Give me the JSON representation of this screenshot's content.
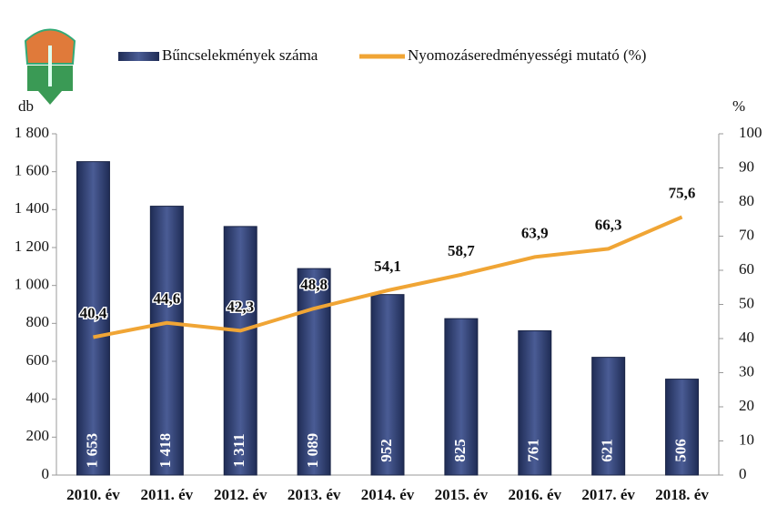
{
  "chart_data": {
    "type": "bar",
    "y_label": "db",
    "y2_label": "%",
    "categories": [
      "2010. év",
      "2011. év",
      "2012. év",
      "2013. év",
      "2014. év",
      "2015. év",
      "2016. év",
      "2017. év",
      "2018. év"
    ],
    "series": [
      {
        "name": "Bűncselekmények száma",
        "color": "#2f3f72",
        "values": [
          1653,
          1418,
          1311,
          1089,
          952,
          825,
          761,
          621,
          506
        ],
        "value_labels": [
          "1 653",
          "1 418",
          "1 311",
          "1 089",
          "952",
          "825",
          "761",
          "621",
          "506"
        ]
      },
      {
        "name": "Nyomozáseredményességi mutató (%)",
        "type": "line",
        "axis": "y2",
        "color": "#f0a535",
        "values": [
          40.4,
          44.6,
          42.3,
          48.8,
          54.1,
          58.7,
          63.9,
          66.3,
          75.6
        ],
        "value_labels": [
          "40,4",
          "44,6",
          "42,3",
          "48,8",
          "54,1",
          "58,7",
          "63,9",
          "66,3",
          "75,6"
        ]
      }
    ],
    "ylim": [
      0,
      1800
    ],
    "yticks": [
      0,
      200,
      400,
      600,
      800,
      {
        "value": 1000,
        "label": "1 000"
      },
      {
        "value": 1200,
        "label": "1 200"
      },
      {
        "value": 1400,
        "label": "1 400"
      },
      {
        "value": 1600,
        "label": "1 600"
      },
      {
        "value": 1800,
        "label": "1 800"
      }
    ],
    "y2lim": [
      0,
      100
    ],
    "y2ticks": [
      0,
      10,
      20,
      30,
      40,
      50,
      60,
      70,
      80,
      90,
      100
    ],
    "grid": false,
    "legend": "top"
  }
}
